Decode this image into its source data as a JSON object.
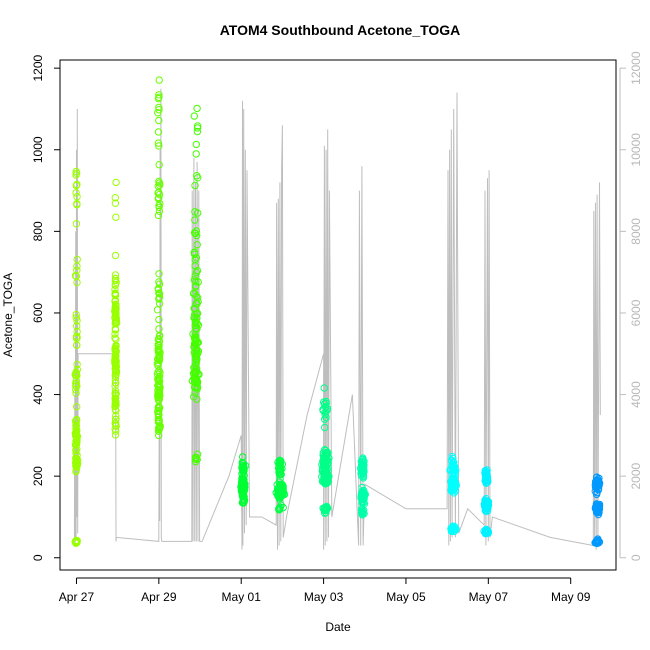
{
  "chart_data": {
    "type": "scatter",
    "title": "ATOM4 Southbound Acetone_TOGA",
    "xlabel": "Date",
    "ylabel": "Acetone_TOGA",
    "x_ticks": [
      {
        "day": 27,
        "label": "Apr 27"
      },
      {
        "day": 29,
        "label": "Apr 29"
      },
      {
        "day": 31,
        "label": "May 01"
      },
      {
        "day": 33,
        "label": "May 03"
      },
      {
        "day": 35,
        "label": "May 05"
      },
      {
        "day": 37,
        "label": "May 07"
      },
      {
        "day": 39,
        "label": "May 09"
      }
    ],
    "xlim": [
      26.6,
      40.1
    ],
    "ylim": [
      -30,
      1220
    ],
    "y_ticks": [
      0,
      200,
      400,
      600,
      800,
      1000,
      1200
    ],
    "y2lim": [
      -300,
      12200
    ],
    "y2_ticks": [
      0,
      2000,
      4000,
      6000,
      8000,
      10000,
      12000
    ],
    "y2_color": "#bebebe",
    "flights": [
      {
        "day": 27.0,
        "color": "#99ff00",
        "dist": [
          [
            0.14,
            40
          ],
          [
            0.27,
            230
          ],
          [
            0.27,
            300
          ],
          [
            0.13,
            430
          ],
          [
            0.08,
            560
          ],
          [
            0.06,
            680
          ],
          [
            0.05,
            900
          ]
        ],
        "spread": 0.04
      },
      {
        "day": 27.95,
        "color": "#99ff00",
        "dist": [
          [
            0.3,
            480
          ],
          [
            0.15,
            380
          ],
          [
            0.25,
            600
          ],
          [
            0.2,
            640
          ],
          [
            0.05,
            320
          ],
          [
            0.05,
            880
          ]
        ],
        "spread": 0.03
      },
      {
        "day": 29.0,
        "color": "#66ff00",
        "dist": [
          [
            0.3,
            420
          ],
          [
            0.2,
            340
          ],
          [
            0.2,
            520
          ],
          [
            0.1,
            650
          ],
          [
            0.12,
            900
          ],
          [
            0.08,
            1100
          ]
        ],
        "spread": 0.05
      },
      {
        "day": 29.9,
        "color": "#44ff00",
        "dist": [
          [
            0.25,
            430
          ],
          [
            0.3,
            520
          ],
          [
            0.2,
            620
          ],
          [
            0.1,
            760
          ],
          [
            0.05,
            880
          ],
          [
            0.05,
            250
          ],
          [
            0.05,
            1000
          ]
        ],
        "spread": 0.1
      },
      {
        "day": 31.05,
        "color": "#00ff33",
        "dist": [
          [
            0.7,
            175
          ],
          [
            0.2,
            225
          ],
          [
            0.1,
            140
          ]
        ],
        "spread": 0.08
      },
      {
        "day": 31.95,
        "color": "#00ff44",
        "dist": [
          [
            0.7,
            165
          ],
          [
            0.2,
            220
          ],
          [
            0.1,
            120
          ]
        ],
        "spread": 0.12
      },
      {
        "day": 33.05,
        "color": "#00ff88",
        "dist": [
          [
            0.5,
            200
          ],
          [
            0.3,
            240
          ],
          [
            0.1,
            120
          ],
          [
            0.1,
            360
          ]
        ],
        "spread": 0.12
      },
      {
        "day": 33.95,
        "color": "#00ffaa",
        "dist": [
          [
            0.6,
            150
          ],
          [
            0.3,
            220
          ],
          [
            0.1,
            110
          ]
        ],
        "spread": 0.08
      },
      {
        "day": 36.15,
        "color": "#00ffff",
        "dist": [
          [
            0.5,
            180
          ],
          [
            0.3,
            220
          ],
          [
            0.2,
            70
          ]
        ],
        "spread": 0.1
      },
      {
        "day": 36.95,
        "color": "#00f2ff",
        "dist": [
          [
            0.5,
            130
          ],
          [
            0.3,
            200
          ],
          [
            0.2,
            65
          ]
        ],
        "spread": 0.08
      },
      {
        "day": 39.65,
        "color": "#0099ff",
        "dist": [
          [
            0.5,
            120
          ],
          [
            0.3,
            180
          ],
          [
            0.2,
            40
          ]
        ],
        "spread": 0.08
      }
    ],
    "altitude_line": {
      "color": "#bebebe",
      "points": [
        [
          26.95,
          500
        ],
        [
          26.96,
          4000
        ],
        [
          26.97,
          300
        ],
        [
          26.98,
          8000
        ],
        [
          26.99,
          500
        ],
        [
          27.0,
          10000
        ],
        [
          27.01,
          1000
        ],
        [
          27.02,
          11000
        ],
        [
          27.03,
          600
        ],
        [
          27.04,
          5000
        ],
        [
          27.95,
          5000
        ],
        [
          27.96,
          400
        ],
        [
          27.97,
          500
        ],
        [
          29.0,
          400
        ],
        [
          29.01,
          4000
        ],
        [
          29.02,
          900
        ],
        [
          29.03,
          10000
        ],
        [
          29.04,
          4000
        ],
        [
          29.05,
          11500
        ],
        [
          29.06,
          500
        ],
        [
          29.07,
          400
        ],
        [
          29.8,
          400
        ],
        [
          29.81,
          9000
        ],
        [
          29.83,
          400
        ],
        [
          29.85,
          9800
        ],
        [
          29.87,
          400
        ],
        [
          29.89,
          9200
        ],
        [
          29.91,
          400
        ],
        [
          29.93,
          9700
        ],
        [
          29.95,
          400
        ],
        [
          29.97,
          9000
        ],
        [
          29.99,
          400
        ],
        [
          30.05,
          400
        ],
        [
          30.7,
          2000
        ],
        [
          31.0,
          3000
        ],
        [
          31.02,
          200
        ],
        [
          31.03,
          11200
        ],
        [
          31.04,
          300
        ],
        [
          31.06,
          11000
        ],
        [
          31.08,
          600
        ],
        [
          31.1,
          10000
        ],
        [
          31.12,
          800
        ],
        [
          31.14,
          9500
        ],
        [
          31.2,
          1000
        ],
        [
          31.5,
          1000
        ],
        [
          31.85,
          800
        ],
        [
          31.86,
          8700
        ],
        [
          31.88,
          200
        ],
        [
          31.9,
          8800
        ],
        [
          31.92,
          300
        ],
        [
          31.94,
          9200
        ],
        [
          31.96,
          400
        ],
        [
          31.98,
          9500
        ],
        [
          32.0,
          10600
        ],
        [
          32.02,
          500
        ],
        [
          32.1,
          1000
        ],
        [
          32.6,
          3500
        ],
        [
          33.0,
          5000
        ],
        [
          33.0,
          200
        ],
        [
          33.02,
          10100
        ],
        [
          33.04,
          300
        ],
        [
          33.06,
          10000
        ],
        [
          33.08,
          400
        ],
        [
          33.1,
          10500
        ],
        [
          33.12,
          500
        ],
        [
          33.14,
          9000
        ],
        [
          33.2,
          1000
        ],
        [
          33.7,
          4000
        ],
        [
          33.85,
          300
        ],
        [
          33.87,
          9000
        ],
        [
          33.9,
          300
        ],
        [
          33.93,
          9600
        ],
        [
          33.96,
          300
        ],
        [
          34.0,
          1800
        ],
        [
          35.0,
          1200
        ],
        [
          36.0,
          1200
        ],
        [
          36.02,
          9500
        ],
        [
          36.04,
          300
        ],
        [
          36.06,
          10000
        ],
        [
          36.08,
          400
        ],
        [
          36.1,
          10500
        ],
        [
          36.12,
          500
        ],
        [
          36.16,
          11000
        ],
        [
          36.2,
          500
        ],
        [
          36.24,
          11400
        ],
        [
          36.28,
          600
        ],
        [
          36.5,
          1200
        ],
        [
          36.9,
          800
        ],
        [
          36.92,
          9000
        ],
        [
          36.94,
          300
        ],
        [
          36.98,
          9300
        ],
        [
          37.0,
          400
        ],
        [
          37.02,
          9500
        ],
        [
          37.04,
          500
        ],
        [
          37.1,
          1000
        ],
        [
          38.5,
          500
        ],
        [
          39.55,
          300
        ],
        [
          39.56,
          8500
        ],
        [
          39.58,
          300
        ],
        [
          39.6,
          8700
        ],
        [
          39.62,
          200
        ],
        [
          39.64,
          8900
        ],
        [
          39.66,
          300
        ],
        [
          39.7,
          9200
        ],
        [
          39.72,
          3500
        ]
      ]
    }
  }
}
